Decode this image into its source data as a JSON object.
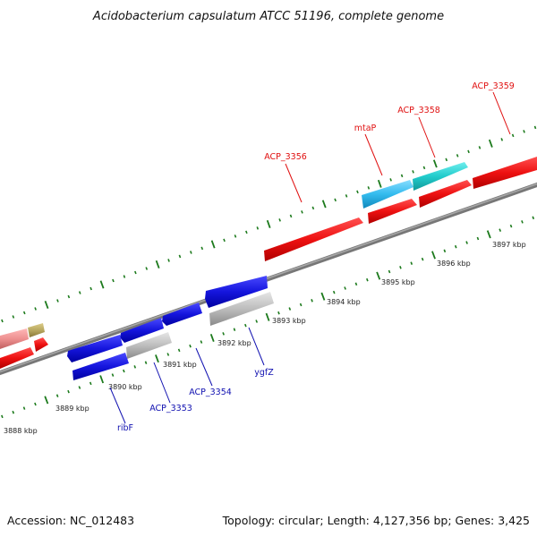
{
  "title": "Acidobacterium capsulatum ATCC 51196, complete genome",
  "footer": {
    "accession": "Accession: NC_012483",
    "summary": "Topology: circular; Length: 4,127,356 bp; Genes: 3,425"
  },
  "colors": {
    "forward_cds": "#ee1111",
    "reverse_cds": "#1515dd",
    "forward_label": "#e01010",
    "reverse_label": "#1010b0",
    "tick": "#1c7a1c",
    "backbone": "#808080",
    "gray_gene": "#bdbdbd",
    "cyan_gene": "#22cccc",
    "light_blue_gene": "#33bbee",
    "pink_gene": "#ee9090",
    "olive_gene": "#b8a860"
  },
  "ruler": {
    "unit": "kbp",
    "labels": [
      "3888 kbp",
      "3889 kbp",
      "3890 kbp",
      "3891 kbp",
      "3892 kbp",
      "3893 kbp",
      "3894 kbp",
      "3895 kbp",
      "3896 kbp",
      "3897 kbp"
    ]
  },
  "genes": {
    "forward_labels": [
      "ACP_3356",
      "mtaP",
      "ACP_3358",
      "ACP_3359"
    ],
    "reverse_labels": [
      "ribF",
      "ACP_3353",
      "ACP_3354",
      "ygfZ"
    ]
  }
}
